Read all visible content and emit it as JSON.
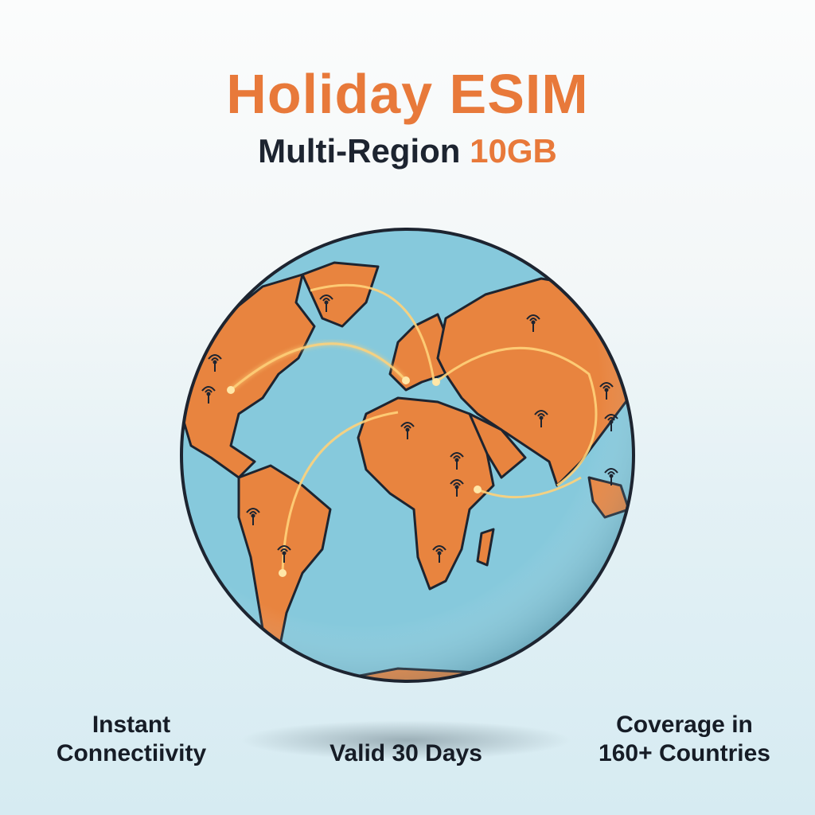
{
  "header": {
    "title": "Holiday ESIM",
    "subtitle_main": "Multi-Region",
    "subtitle_highlight": "10GB"
  },
  "globe": {
    "icon": "globe-icon",
    "ocean_color": "#86c9dc",
    "land_color": "#e8843f",
    "arc_color": "#ffd27a",
    "marker_icon": "signal-antenna-icon"
  },
  "features": [
    {
      "line1": "Instant",
      "line2": "Connectiivity"
    },
    {
      "line1": "Valid 30 Days"
    },
    {
      "line1": "Coverage in",
      "line2": "160+ Countries"
    }
  ],
  "colors": {
    "accent": "#e8793a",
    "text": "#1d2430"
  }
}
